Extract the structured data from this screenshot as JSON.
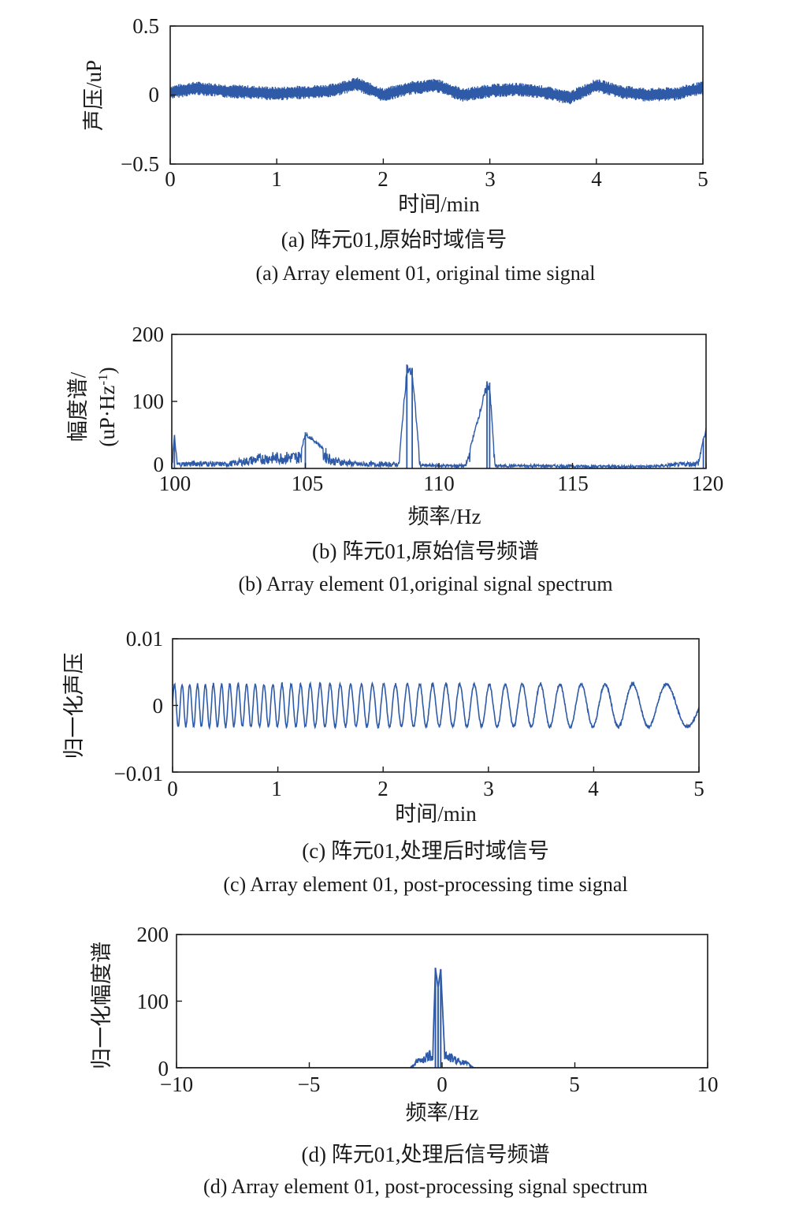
{
  "chart_data": [
    {
      "type": "line",
      "ylabel": "声压/uP",
      "xlabel": "时间/min",
      "xlim": [
        0,
        5
      ],
      "ylim": [
        -0.5,
        0.5
      ],
      "xticks": [
        "0",
        "1",
        "2",
        "3",
        "4",
        "5"
      ],
      "yticks": [
        "0.5",
        "0",
        "−0.5"
      ],
      "caption_zh": "(a) 阵元01,原始时域信号",
      "caption_en": "(a) Array element 01, original time signal",
      "color": "#2e5aa8",
      "series": [
        {
          "x": [
            0,
            0.25,
            0.5,
            0.75,
            1.0,
            1.25,
            1.5,
            1.75,
            2.0,
            2.25,
            2.5,
            2.75,
            3.0,
            3.25,
            3.5,
            3.75,
            4.0,
            4.25,
            4.5,
            4.75,
            5.0
          ],
          "y": [
            0.02,
            0.05,
            0.03,
            0.02,
            0.01,
            0.02,
            0.03,
            0.08,
            0.0,
            0.05,
            0.07,
            0.0,
            0.03,
            0.04,
            0.02,
            -0.02,
            0.07,
            0.02,
            0.0,
            0.01,
            0.05
          ],
          "band": 0.05
        }
      ]
    },
    {
      "type": "line",
      "ylabel": "幅度谱/",
      "ylabel_unit": "(uP·Hz",
      "ylabel_exp": "-1",
      "ylabel_close": ")",
      "xlabel": "频率/Hz",
      "xlim": [
        100,
        120
      ],
      "ylim": [
        0,
        200
      ],
      "xticks": [
        "100",
        "105",
        "110",
        "115",
        "120"
      ],
      "yticks": [
        "200",
        "100",
        "0"
      ],
      "caption_zh": "(b) 阵元01,原始信号频谱",
      "caption_en": "(b) Array element 01,original signal spectrum",
      "color": "#2e5aa8",
      "series": [
        {
          "x": [
            100.0,
            100.1,
            100.2,
            101.0,
            102.0,
            103.5,
            104.8,
            105.0,
            105.5,
            106.0,
            107.0,
            108.5,
            108.8,
            109.0,
            109.3,
            111.0,
            111.8,
            111.9,
            112.1,
            114.0,
            116.0,
            118.0,
            119.7,
            119.9,
            120.0
          ],
          "y": [
            10,
            50,
            8,
            10,
            8,
            20,
            22,
            54,
            38,
            15,
            8,
            8,
            155,
            150,
            6,
            5,
            130,
            128,
            5,
            5,
            4,
            4,
            10,
            45,
            60
          ]
        }
      ]
    },
    {
      "type": "line",
      "ylabel": "归一化声压",
      "xlabel": "时间/min",
      "xlim": [
        0,
        5
      ],
      "ylim": [
        -0.01,
        0.01
      ],
      "xticks": [
        "0",
        "1",
        "2",
        "3",
        "4",
        "5"
      ],
      "yticks": [
        "0.01",
        "0",
        "−0.01"
      ],
      "caption_zh": "(c) 阵元01,处理后时域信号",
      "caption_en": "(c) Array element 01, post-processing time signal",
      "color": "#2e5aa8",
      "series": [
        {
          "amplitude": 0.0032,
          "cycles_per_min_start": 14,
          "cycles_per_min_end": 2
        }
      ]
    },
    {
      "type": "line",
      "ylabel": "归一化幅度谱",
      "xlabel": "频率/Hz",
      "xlim": [
        -10,
        10
      ],
      "ylim": [
        0,
        200
      ],
      "xticks": [
        "−10",
        "−5",
        "0",
        "5",
        "10"
      ],
      "yticks": [
        "200",
        "100",
        "0"
      ],
      "caption_zh": "(d) 阵元01,处理后信号频谱",
      "caption_en": "(d) Array element 01, post-processing signal spectrum",
      "color": "#2e5aa8",
      "series": [
        {
          "x": [
            -10,
            -1.2,
            -0.9,
            -0.6,
            -0.35,
            -0.25,
            -0.15,
            -0.05,
            0.1,
            0.3,
            0.5,
            1.0,
            1.2,
            10
          ],
          "y": [
            0,
            0,
            10,
            15,
            20,
            150,
            120,
            148,
            20,
            15,
            12,
            5,
            0,
            0
          ]
        }
      ]
    }
  ]
}
